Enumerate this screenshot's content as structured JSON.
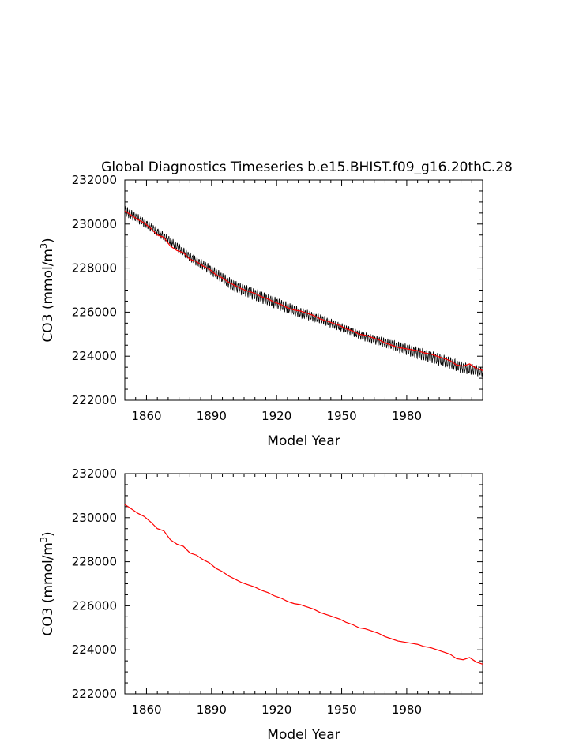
{
  "chart_data": [
    {
      "type": "line",
      "title": "Global Diagnostics Timeseries b.e15.BHIST.f09_g16.20thC.28",
      "xlabel": "Model Year",
      "ylabel_prefix": "CO3 (mmol/m",
      "ylabel_sup": "3",
      "ylabel_suffix": ")",
      "xlim": [
        1850,
        2015
      ],
      "ylim": [
        222000,
        232000
      ],
      "x_ticks": [
        1860,
        1890,
        1920,
        1950,
        1980
      ],
      "y_ticks": [
        222000,
        224000,
        226000,
        228000,
        230000,
        232000
      ],
      "grid": false,
      "series": [
        {
          "color": "#000000",
          "sampling": "monthly",
          "seasonal_amplitude": 180,
          "base_points": [
            [
              1850,
              230600
            ],
            [
              1860,
              230000
            ],
            [
              1870,
              229300
            ],
            [
              1880,
              228500
            ],
            [
              1890,
              227900
            ],
            [
              1900,
              227200
            ],
            [
              1910,
              226800
            ],
            [
              1920,
              226400
            ],
            [
              1930,
              226000
            ],
            [
              1940,
              225700
            ],
            [
              1950,
              225300
            ],
            [
              1960,
              224900
            ],
            [
              1970,
              224600
            ],
            [
              1980,
              224300
            ],
            [
              1990,
              224000
            ],
            [
              2000,
              223700
            ],
            [
              2005,
              223500
            ],
            [
              2015,
              223300
            ]
          ]
        },
        {
          "color": "#ff0000",
          "sampling": "annual",
          "points": [
            [
              1850,
              230600
            ],
            [
              1853,
              230400
            ],
            [
              1856,
              230200
            ],
            [
              1859,
              230050
            ],
            [
              1862,
              229800
            ],
            [
              1865,
              229500
            ],
            [
              1868,
              229400
            ],
            [
              1871,
              229000
            ],
            [
              1874,
              228800
            ],
            [
              1877,
              228700
            ],
            [
              1880,
              228400
            ],
            [
              1883,
              228300
            ],
            [
              1886,
              228100
            ],
            [
              1889,
              227950
            ],
            [
              1892,
              227700
            ],
            [
              1895,
              227550
            ],
            [
              1898,
              227350
            ],
            [
              1901,
              227200
            ],
            [
              1904,
              227050
            ],
            [
              1907,
              226950
            ],
            [
              1910,
              226850
            ],
            [
              1913,
              226700
            ],
            [
              1916,
              226600
            ],
            [
              1919,
              226450
            ],
            [
              1922,
              226350
            ],
            [
              1925,
              226200
            ],
            [
              1928,
              226100
            ],
            [
              1931,
              226050
            ],
            [
              1934,
              225950
            ],
            [
              1937,
              225850
            ],
            [
              1940,
              225700
            ],
            [
              1943,
              225600
            ],
            [
              1946,
              225500
            ],
            [
              1949,
              225400
            ],
            [
              1952,
              225250
            ],
            [
              1955,
              225150
            ],
            [
              1958,
              225000
            ],
            [
              1961,
              224950
            ],
            [
              1964,
              224850
            ],
            [
              1967,
              224750
            ],
            [
              1970,
              224600
            ],
            [
              1973,
              224500
            ],
            [
              1976,
              224400
            ],
            [
              1979,
              224350
            ],
            [
              1982,
              224300
            ],
            [
              1985,
              224250
            ],
            [
              1988,
              224150
            ],
            [
              1991,
              224100
            ],
            [
              1994,
              224000
            ],
            [
              1997,
              223900
            ],
            [
              2000,
              223800
            ],
            [
              2003,
              223600
            ],
            [
              2006,
              223550
            ],
            [
              2009,
              223650
            ],
            [
              2012,
              223450
            ],
            [
              2015,
              223350
            ]
          ]
        }
      ]
    },
    {
      "type": "line",
      "xlabel": "Model Year",
      "ylabel_prefix": "CO3 (mmol/m",
      "ylabel_sup": "3",
      "ylabel_suffix": ")",
      "xlim": [
        1850,
        2015
      ],
      "ylim": [
        222000,
        232000
      ],
      "x_ticks": [
        1860,
        1890,
        1920,
        1950,
        1980
      ],
      "y_ticks": [
        222000,
        224000,
        226000,
        228000,
        230000,
        232000
      ],
      "grid": false,
      "series": [
        {
          "color": "#ff0000",
          "sampling": "annual",
          "points": [
            [
              1850,
              230600
            ],
            [
              1853,
              230400
            ],
            [
              1856,
              230200
            ],
            [
              1859,
              230050
            ],
            [
              1862,
              229800
            ],
            [
              1865,
              229500
            ],
            [
              1868,
              229400
            ],
            [
              1871,
              229000
            ],
            [
              1874,
              228800
            ],
            [
              1877,
              228700
            ],
            [
              1880,
              228400
            ],
            [
              1883,
              228300
            ],
            [
              1886,
              228100
            ],
            [
              1889,
              227950
            ],
            [
              1892,
              227700
            ],
            [
              1895,
              227550
            ],
            [
              1898,
              227350
            ],
            [
              1901,
              227200
            ],
            [
              1904,
              227050
            ],
            [
              1907,
              226950
            ],
            [
              1910,
              226850
            ],
            [
              1913,
              226700
            ],
            [
              1916,
              226600
            ],
            [
              1919,
              226450
            ],
            [
              1922,
              226350
            ],
            [
              1925,
              226200
            ],
            [
              1928,
              226100
            ],
            [
              1931,
              226050
            ],
            [
              1934,
              225950
            ],
            [
              1937,
              225850
            ],
            [
              1940,
              225700
            ],
            [
              1943,
              225600
            ],
            [
              1946,
              225500
            ],
            [
              1949,
              225400
            ],
            [
              1952,
              225250
            ],
            [
              1955,
              225150
            ],
            [
              1958,
              225000
            ],
            [
              1961,
              224950
            ],
            [
              1964,
              224850
            ],
            [
              1967,
              224750
            ],
            [
              1970,
              224600
            ],
            [
              1973,
              224500
            ],
            [
              1976,
              224400
            ],
            [
              1979,
              224350
            ],
            [
              1982,
              224300
            ],
            [
              1985,
              224250
            ],
            [
              1988,
              224150
            ],
            [
              1991,
              224100
            ],
            [
              1994,
              224000
            ],
            [
              1997,
              223900
            ],
            [
              2000,
              223800
            ],
            [
              2003,
              223600
            ],
            [
              2006,
              223550
            ],
            [
              2009,
              223650
            ],
            [
              2012,
              223450
            ],
            [
              2015,
              223350
            ]
          ]
        }
      ]
    }
  ]
}
